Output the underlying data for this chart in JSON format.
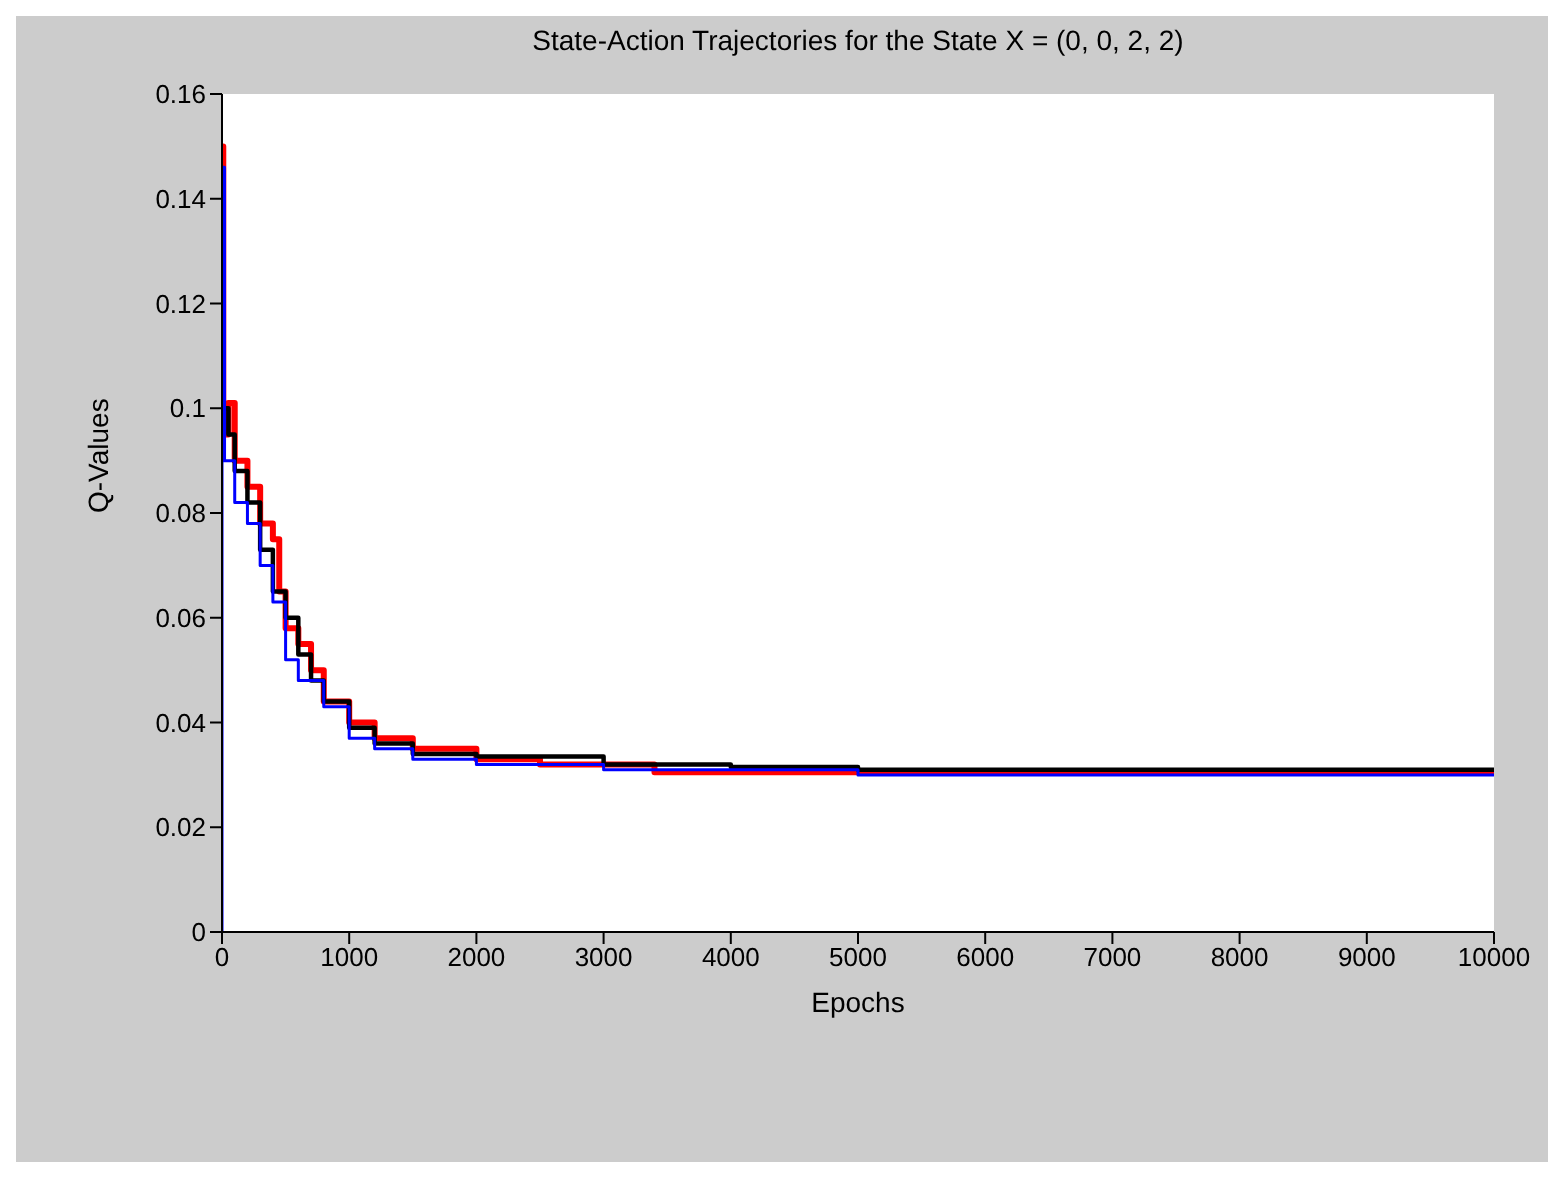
{
  "chart_data": {
    "type": "step",
    "title": "State-Action Trajectories for the State X = (0, 0, 2, 2)",
    "xlabel": "Epochs",
    "ylabel": "Q-Values",
    "xlim": [
      0,
      10000
    ],
    "xticks": [
      0,
      1000,
      2000,
      3000,
      4000,
      5000,
      6000,
      7000,
      8000,
      9000,
      10000
    ],
    "ylim": [
      0,
      0.16
    ],
    "yticks": [
      0,
      0.02,
      0.04,
      0.06,
      0.08,
      0.1,
      0.12,
      0.14,
      0.16
    ],
    "legend": false,
    "marker": "none",
    "line_style": "solid",
    "series": [
      {
        "color": "#ff0000",
        "x": [
          0,
          10,
          50,
          100,
          200,
          300,
          400,
          450,
          500,
          600,
          700,
          800,
          1000,
          1200,
          1500,
          2000,
          2500,
          3400,
          5400,
          6300,
          10000
        ],
        "values": [
          0.15,
          0.095,
          0.101,
          0.09,
          0.085,
          0.078,
          0.075,
          0.065,
          0.058,
          0.055,
          0.05,
          0.044,
          0.04,
          0.037,
          0.035,
          0.033,
          0.032,
          0.0305,
          0.0305,
          0.0305,
          0.0305
        ]
      },
      {
        "color": "#000000",
        "x": [
          0,
          50,
          100,
          200,
          300,
          400,
          500,
          600,
          700,
          800,
          1000,
          1200,
          1500,
          2000,
          3000,
          4000,
          5000,
          10000
        ],
        "values": [
          0.1,
          0.095,
          0.088,
          0.082,
          0.073,
          0.065,
          0.06,
          0.053,
          0.048,
          0.044,
          0.039,
          0.036,
          0.034,
          0.0335,
          0.032,
          0.0315,
          0.031,
          0.031
        ]
      },
      {
        "color": "#0000ff",
        "x": [
          0,
          0,
          20,
          100,
          200,
          300,
          400,
          500,
          600,
          800,
          1000,
          1200,
          1500,
          2000,
          3000,
          5000,
          10000
        ],
        "values": [
          0,
          0.146,
          0.09,
          0.082,
          0.078,
          0.07,
          0.063,
          0.052,
          0.048,
          0.043,
          0.037,
          0.035,
          0.033,
          0.032,
          0.031,
          0.03,
          0.03
        ]
      }
    ]
  }
}
